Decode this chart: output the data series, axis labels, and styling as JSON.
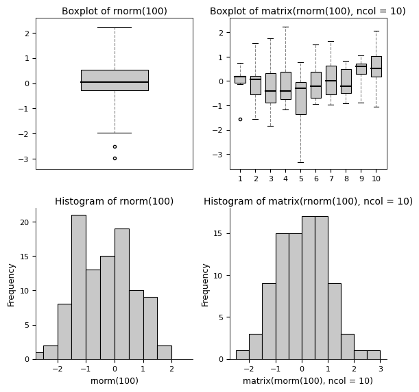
{
  "title_bp1": "Boxplot of rnorm(100)",
  "title_bp2": "Boxplot of matrix(rnorm(100), ncol = 10)",
  "title_hist1": "Histogram of rnorm(100)",
  "title_hist2": "Histogram of matrix(rnorm(100), ncol = 10)",
  "xlabel_hist1": "rnorm(100)",
  "xlabel_hist2": "matrix(rnorm(100), ncol = 10)",
  "ylabel_hist": "Frequency",
  "bp1": {
    "median": 0.05,
    "q1": -0.28,
    "q3": 0.52,
    "whisker_low": -1.97,
    "whisker_high": 2.21,
    "outliers": [
      -2.52,
      -2.98
    ]
  },
  "bp2_cols": [
    {
      "median": 0.17,
      "q1": -0.08,
      "q3": 0.22,
      "whisker_low": -0.14,
      "whisker_high": 0.75,
      "outliers": [
        -1.55
      ]
    },
    {
      "median": 0.08,
      "q1": -0.55,
      "q3": 0.22,
      "whisker_low": -1.55,
      "whisker_high": 1.55,
      "outliers": []
    },
    {
      "median": -0.4,
      "q1": -0.9,
      "q3": 0.32,
      "whisker_low": -1.85,
      "whisker_high": 1.75,
      "outliers": []
    },
    {
      "median": -0.42,
      "q1": -0.75,
      "q3": 0.38,
      "whisker_low": -1.18,
      "whisker_high": 2.22,
      "outliers": []
    },
    {
      "median": -0.3,
      "q1": -1.35,
      "q3": -0.05,
      "whisker_low": -3.33,
      "whisker_high": 0.78,
      "outliers": []
    },
    {
      "median": -0.22,
      "q1": -0.68,
      "q3": 0.38,
      "whisker_low": -0.93,
      "whisker_high": 1.5,
      "outliers": []
    },
    {
      "median": 0.02,
      "q1": -0.55,
      "q3": 0.62,
      "whisker_low": -0.98,
      "whisker_high": 1.65,
      "outliers": []
    },
    {
      "median": -0.22,
      "q1": -0.48,
      "q3": 0.48,
      "whisker_low": -0.92,
      "whisker_high": 0.82,
      "outliers": []
    },
    {
      "median": 0.6,
      "q1": 0.28,
      "q3": 0.72,
      "whisker_low": -0.88,
      "whisker_high": 1.05,
      "outliers": []
    },
    {
      "median": 0.52,
      "q1": 0.18,
      "q3": 1.02,
      "whisker_low": -1.05,
      "whisker_high": 2.05,
      "outliers": []
    }
  ],
  "hist1_edges": [
    -2.75,
    -2.25,
    -1.75,
    -1.25,
    -0.75,
    -0.25,
    0.25,
    0.75,
    1.25,
    1.75,
    2.25
  ],
  "hist1_counts": [
    1,
    2,
    8,
    21,
    13,
    15,
    19,
    10,
    9,
    2
  ],
  "hist2_edges": [
    -2.5,
    -2.0,
    -1.5,
    -1.0,
    -0.5,
    0.0,
    0.5,
    1.0,
    1.5,
    2.0,
    2.5,
    3.0
  ],
  "hist2_counts": [
    1,
    3,
    9,
    15,
    15,
    17,
    17,
    9,
    3,
    1,
    1
  ],
  "box_facecolor": "#c8c8c8",
  "box_edgecolor": "black",
  "median_color": "black",
  "whisker_color": "#888888",
  "hist_facecolor": "#c8c8c8",
  "hist_edgecolor": "black",
  "bg_color": "white",
  "title_fontsize": 10,
  "label_fontsize": 9,
  "tick_fontsize": 8
}
